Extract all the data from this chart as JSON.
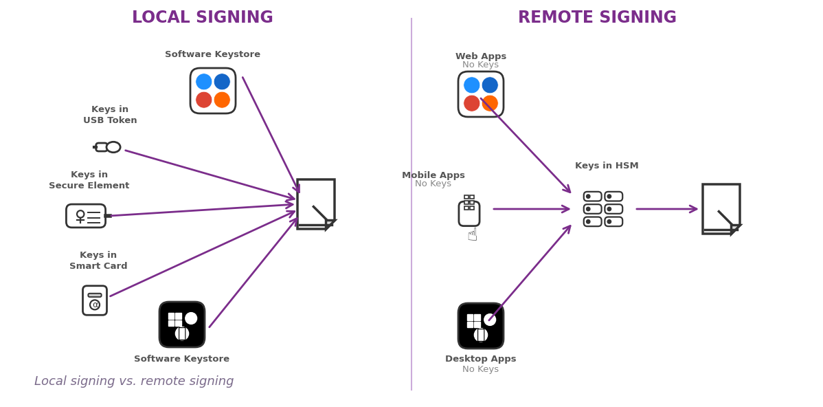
{
  "title_local": "LOCAL SIGNING",
  "title_remote": "REMOTE SIGNING",
  "subtitle": "Local signing vs. remote signing",
  "title_color": "#7B2D8B",
  "subtitle_color": "#7B6B8B",
  "label_color": "#888888",
  "label_bold_color": "#555555",
  "arrow_color": "#7B2D8B",
  "bg_color": "#ffffff",
  "divider_color": "#9B59B6",
  "icon_edge_color": "#333333"
}
